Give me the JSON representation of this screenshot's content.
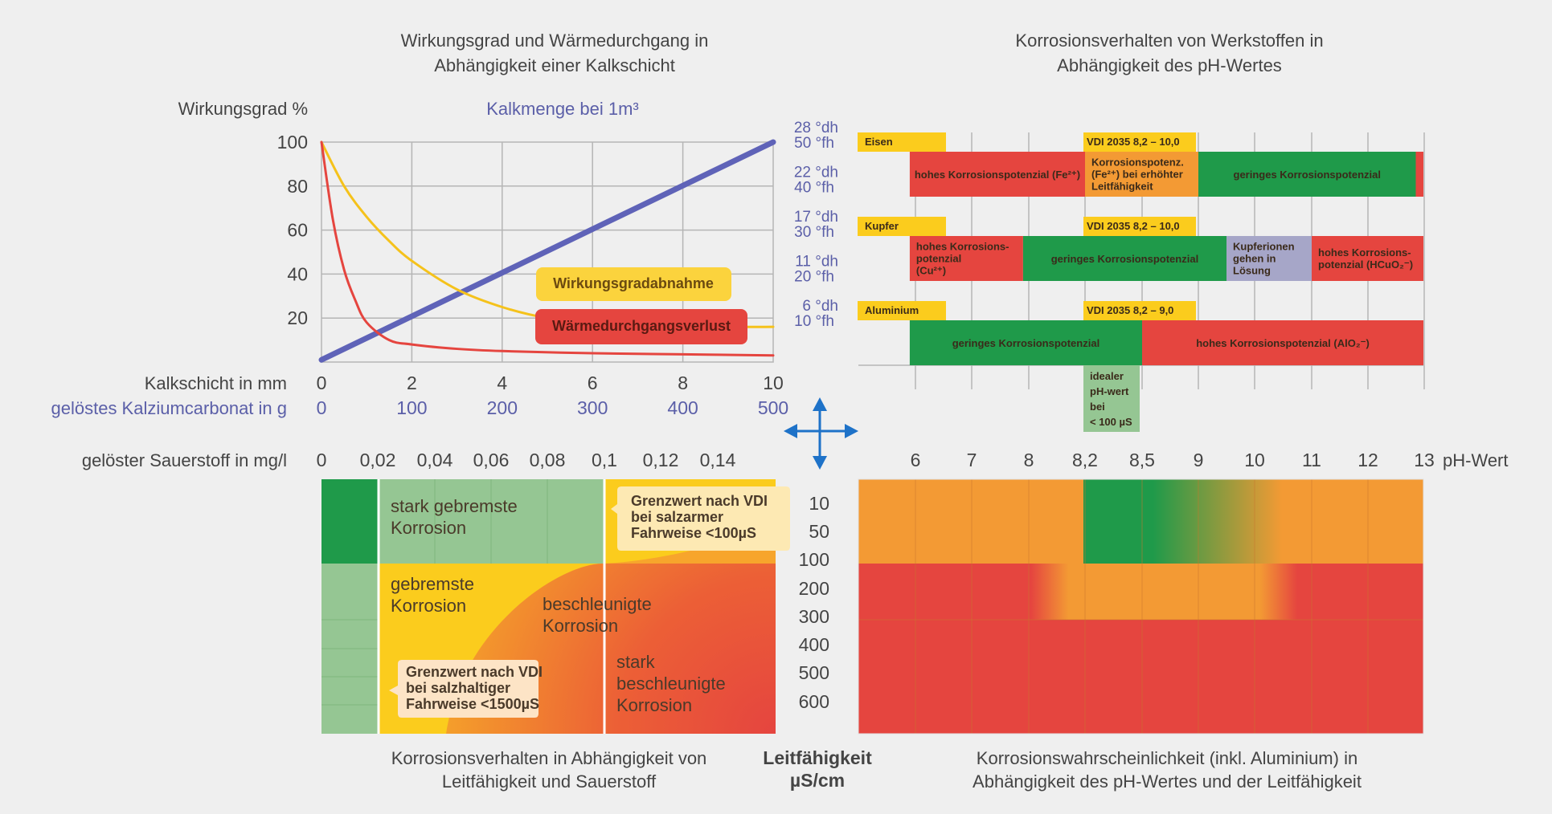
{
  "chart_data": [
    {
      "type": "line",
      "title": "Wirkungsgrad und Wärmedurchgang in Abhängigkeit einer Kalkschicht",
      "title_lines": [
        "Wirkungsgrad und Wärmedurchgang in",
        "Abhängigkeit einer Kalkschicht"
      ],
      "ylabel": "Wirkungsgrad %",
      "ylabel_right": "Kalkmenge bei 1m³",
      "xlabel": "Kalkschicht in mm",
      "xlabel2": "gelöstes Kalziumcarbonat in g",
      "xlim": [
        0,
        10
      ],
      "ylim": [
        0,
        100
      ],
      "x_ticks": [
        "0",
        "2",
        "4",
        "6",
        "8",
        "10"
      ],
      "x2_ticks": [
        "0",
        "100",
        "200",
        "300",
        "400",
        "500"
      ],
      "y_ticks": [
        "100",
        "80",
        "60",
        "40",
        "20"
      ],
      "right_ticks": [
        {
          "dh": "28 °dh",
          "fh": "50 °fh"
        },
        {
          "dh": "22 °dh",
          "fh": "40 °fh"
        },
        {
          "dh": "17 °dh",
          "fh": "30 °fh"
        },
        {
          "dh": "11 °dh",
          "fh": "20 °fh"
        },
        {
          "dh": "6 °dh",
          "fh": "10 °fh"
        }
      ],
      "grid": true,
      "colors": {
        "wirkungsgrad": "#f5c21b",
        "waerme": "#e5453f",
        "kalk": "#5f63b8"
      },
      "series": [
        {
          "name": "Wirkungsgradabnahme",
          "x": [
            0,
            0.5,
            1,
            1.5,
            2,
            3,
            4,
            5,
            6,
            7,
            8,
            9,
            10
          ],
          "y": [
            100,
            80,
            66,
            55,
            46,
            33,
            25,
            20,
            18,
            17,
            16.5,
            16,
            16
          ]
        },
        {
          "name": "Wärmedurchgangsverlust",
          "x": [
            0,
            0.25,
            0.5,
            0.75,
            1,
            1.5,
            2,
            3,
            4,
            6,
            8,
            10
          ],
          "y": [
            100,
            65,
            42,
            28,
            18,
            10,
            8,
            6,
            5,
            4,
            3.5,
            3
          ]
        },
        {
          "name": "Kalkmenge",
          "x": [
            0,
            10
          ],
          "y": [
            1,
            100
          ]
        }
      ]
    },
    {
      "type": "table",
      "title": "Korrosionsverhalten von Werkstoffen in Abhängigkeit des pH-Wertes",
      "title_lines": [
        "Korrosionsverhalten von Werkstoffen in",
        "Abhängigkeit des pH-Wertes"
      ],
      "x_ticks": [
        "6",
        "7",
        "8",
        "8,2",
        "8,5",
        "9",
        "10",
        "11",
        "12",
        "13"
      ],
      "xlabel": "pH-Wert",
      "colors": {
        "red": "#e5453f",
        "green": "#1f9a4a",
        "orange": "#f39a34",
        "yellow": "#fbcc1d",
        "lavender": "#a6a6c8",
        "lightgreen": "#95c693"
      },
      "materials": [
        {
          "name": "Eisen",
          "vdi": "VDI 2035 8,2 – 10,0",
          "segments": [
            {
              "from": 5.9,
              "to": 8.2,
              "color": "red",
              "text": [
                "hohes Korrosionspotenzial (Fe²⁺)"
              ]
            },
            {
              "from": 8.2,
              "to": 9.0,
              "color": "orange",
              "text": [
                "Korrosionspotenz.",
                "(Fe²⁺) bei erhöhter",
                "Leitfähigkeit"
              ]
            },
            {
              "from": 9.0,
              "to": 12.85,
              "color": "green",
              "text": [
                "geringes Korrosionspotenzial"
              ]
            },
            {
              "from": 12.85,
              "to": 13.0,
              "color": "red",
              "text": []
            }
          ]
        },
        {
          "name": "Kupfer",
          "vdi": "VDI 2035 8,2 – 10,0",
          "segments": [
            {
              "from": 5.9,
              "to": 7.9,
              "color": "red",
              "text": [
                "hohes Korrosions-",
                "potenzial",
                "(Cu²⁺)"
              ]
            },
            {
              "from": 7.9,
              "to": 9.5,
              "color": "green",
              "text": [
                "geringes Korrosionspotenzial"
              ]
            },
            {
              "from": 9.5,
              "to": 11.0,
              "color": "lavender",
              "text": [
                "Kupferionen",
                "gehen in",
                "Lösung"
              ]
            },
            {
              "from": 11.0,
              "to": 13.0,
              "color": "red",
              "text": [
                "hohes Korrosions-",
                "potenzial (HCuO₂⁻)"
              ]
            }
          ]
        },
        {
          "name": "Aluminium",
          "vdi": "VDI 2035 8,2 – 9,0",
          "segments": [
            {
              "from": 5.9,
              "to": 8.5,
              "color": "green",
              "text": [
                "geringes Korrosionspotenzial"
              ]
            },
            {
              "from": 8.5,
              "to": 13.0,
              "color": "red",
              "text": [
                "hohes Korrosionspotenzial (AlO₂⁻)"
              ]
            }
          ]
        }
      ],
      "ideal_note": [
        "idealer",
        "pH-wert",
        "bei",
        "< 100 µS"
      ]
    },
    {
      "type": "heatmap",
      "title": "Korrosionsverhalten in Abhängigkeit von Leitfähigkeit und Sauerstoff",
      "title_lines": [
        "Korrosionsverhalten in Abhängigkeit von",
        "Leitfähigkeit und Sauerstoff"
      ],
      "xlabel": "gelöster Sauerstoff in mg/l",
      "x_ticks": [
        "0",
        "0,02",
        "0,04",
        "0,06",
        "0,08",
        "0,1",
        "0,12",
        "0,14"
      ],
      "ylabel": "Leitfähigkeit µS/cm",
      "ylabel_lines": [
        "Leitfähigkeit",
        "µS/cm"
      ],
      "y_ticks": [
        "10",
        "50",
        "100",
        "200",
        "300",
        "400",
        "500",
        "600"
      ],
      "zones": [
        {
          "label_lines": [
            "stark gebremste",
            "Korrosion"
          ]
        },
        {
          "label_lines": [
            "gebremste",
            "Korrosion"
          ]
        },
        {
          "label_lines": [
            "beschleunigte",
            "Korrosion"
          ]
        },
        {
          "label_lines": [
            "stark",
            "beschleunigte",
            "Korrosion"
          ]
        }
      ],
      "callouts": [
        {
          "lines": [
            "Grenzwert nach VDI",
            "bei salzarmer",
            "Fahrweise <100µS"
          ]
        },
        {
          "lines": [
            "Grenzwert nach VDI",
            "bei salzhaltiger",
            "Fahrweise <1500µS"
          ]
        }
      ]
    },
    {
      "type": "heatmap",
      "title": "Korrosionswahrscheinlichkeit (inkl. Aluminium) in Abhängigkeit des pH-Wertes und der Leitfähigkeit",
      "title_lines": [
        "Korrosionswahrscheinlichkeit (inkl. Aluminium) in",
        "Abhängigkeit des pH-Wertes und der Leitfähigkeit"
      ]
    }
  ]
}
